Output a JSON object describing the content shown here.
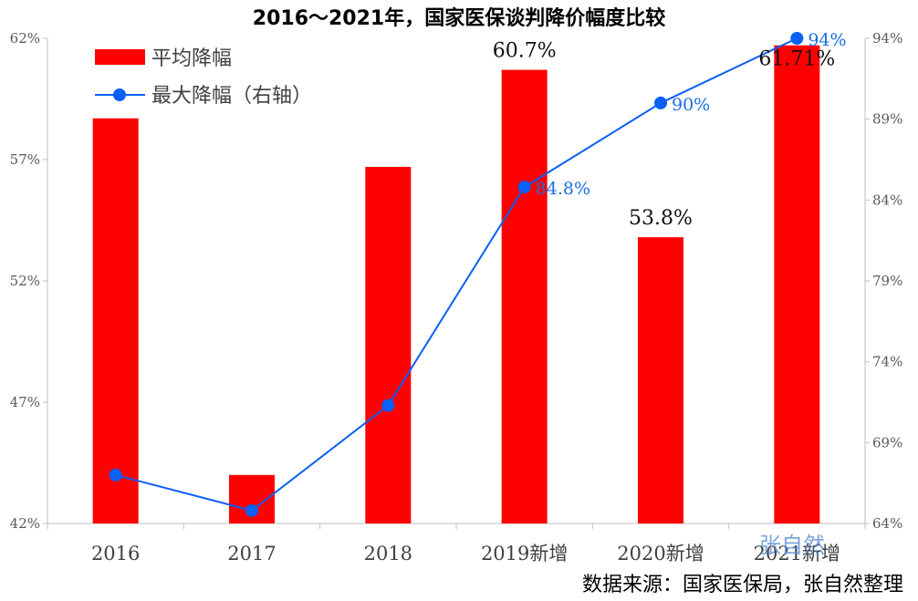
{
  "chart_data": {
    "type": "bar+line",
    "title": "2016～2021年，国家医保谈判降价幅度比较",
    "categories": [
      "2016",
      "2017",
      "2018",
      "2019新增",
      "2020新增",
      "2021新增"
    ],
    "series": [
      {
        "name": "平均降幅",
        "type": "bar",
        "axis": "left",
        "color": "#ff0000",
        "values": [
          58.7,
          44.0,
          56.7,
          60.7,
          53.8,
          61.71
        ],
        "labels": [
          "",
          "",
          "",
          "60.7%",
          "53.8%",
          "61.71%"
        ]
      },
      {
        "name": "最大降幅（右轴）",
        "type": "line",
        "axis": "right",
        "color": "#0a5ff5",
        "values": [
          67.0,
          64.8,
          71.3,
          84.8,
          90.0,
          94.0
        ],
        "labels": [
          "",
          "",
          "",
          "84.8%",
          "90%",
          "94%"
        ]
      }
    ],
    "y_left": {
      "min": 42,
      "max": 62,
      "ticks": [
        "42%",
        "47%",
        "52%",
        "57%",
        "62%"
      ]
    },
    "y_right": {
      "min": 64,
      "max": 94,
      "ticks": [
        "64%",
        "69%",
        "74%",
        "79%",
        "84%",
        "89%",
        "94%"
      ]
    },
    "grid": false,
    "legend": "top-left",
    "watermark": "张自然",
    "source": "数据来源：国家医保局，张自然整理"
  }
}
